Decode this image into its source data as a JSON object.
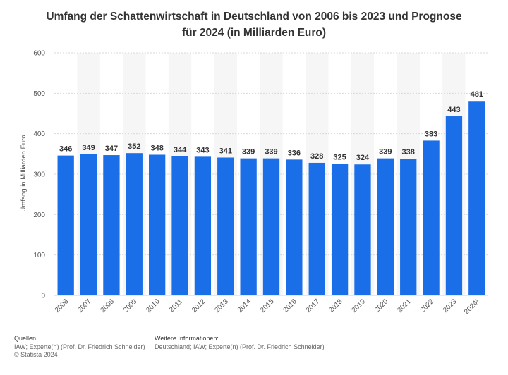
{
  "chart_data": {
    "type": "bar",
    "title_lines": [
      "Umfang der Schattenwirtschaft in Deutschland von 2006 bis 2023 und Prognose",
      "für 2024 (in Milliarden Euro)"
    ],
    "categories": [
      "2006",
      "2007",
      "2008",
      "2009",
      "2010",
      "2011",
      "2012",
      "2013",
      "2014",
      "2015",
      "2016",
      "2017",
      "2018",
      "2019",
      "2020",
      "2021",
      "2022",
      "2023",
      "2024¹"
    ],
    "values": [
      346,
      349,
      347,
      352,
      348,
      344,
      343,
      341,
      339,
      339,
      336,
      328,
      325,
      324,
      339,
      338,
      383,
      443,
      481
    ],
    "ylabel": "Umfang in Milliarden Euro",
    "xlabel": "",
    "ylim": [
      0,
      600
    ],
    "yticks": [
      0,
      100,
      200,
      300,
      400,
      500,
      600
    ],
    "grid": true,
    "bar_color": "#1a6ee8"
  },
  "footer": {
    "sources_heading": "Quellen",
    "sources_text": "IAW; Experte(n) (Prof. Dr. Friedrich Schneider)",
    "copyright": "© Statista 2024",
    "info_heading": "Weitere Informationen:",
    "info_text": "Deutschland; IAW; Experte(n) (Prof. Dr. Friedrich Schneider)"
  }
}
